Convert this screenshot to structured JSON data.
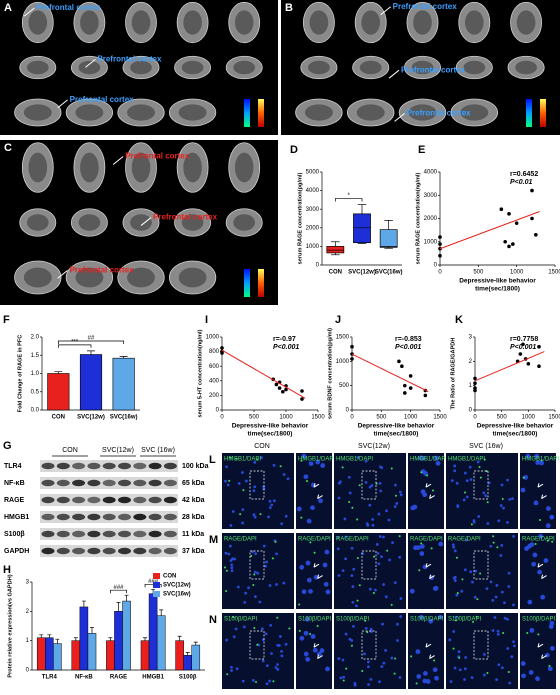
{
  "images": [
    {
      "label": "A",
      "annotations": [
        "Prefrontal cortex",
        "Prefrontal cortex",
        "Prefrontal cortex"
      ],
      "annotation_color": "#3aa0ff"
    },
    {
      "label": "B",
      "annotations": [
        "Prefrontal cortex",
        "Prefrontal cortex",
        "Prefrontal cortex"
      ],
      "annotation_color": "#3aa0ff"
    },
    {
      "label": "C",
      "annotations": [
        "Prefrontal cortex",
        "Prefrontal cortex",
        "Prefrontal cortex"
      ],
      "annotation_color": "#e8211f"
    }
  ],
  "blot": {
    "label": "G",
    "columns": [
      "CON",
      "SVC(12w)",
      "SVC (16w)"
    ],
    "rows": [
      {
        "name": "TLR4",
        "size": "100 kDa"
      },
      {
        "name": "NF-κB",
        "size": "65 kDa"
      },
      {
        "name": "RAGE",
        "size": "42 kDa"
      },
      {
        "name": "HMGB1",
        "size": "28 kDa"
      },
      {
        "name": "S100β",
        "size": "11 kDa"
      },
      {
        "name": "GAPDH",
        "size": "37 kDa"
      }
    ]
  },
  "micrographs": {
    "columns": [
      "CON",
      "SVC(12w)",
      "SVC (16w)"
    ],
    "rows": [
      {
        "label": "L",
        "stain": "HMGB1/DAPI"
      },
      {
        "label": "M",
        "stain": "RAGE/DAPI"
      },
      {
        "label": "N",
        "stain": "S100β/DAPI"
      }
    ]
  },
  "chart_data": [
    {
      "type": "box",
      "label": "D",
      "ylabel": "serum RAGE concentration(pg/ml)",
      "categories": [
        "CON",
        "SVC(12w)",
        "SVC(16w)"
      ],
      "boxes": [
        {
          "min": 550,
          "q1": 650,
          "median": 800,
          "q3": 1000,
          "max": 1250
        },
        {
          "min": 1150,
          "q1": 1200,
          "median": 2000,
          "q3": 2750,
          "max": 3250
        },
        {
          "min": 900,
          "q1": 950,
          "median": 1000,
          "q3": 1900,
          "max": 2400
        }
      ],
      "colors": [
        "#e8211f",
        "#1f2fd8",
        "#5fa8e8"
      ],
      "ylim": [
        0,
        5000
      ],
      "yticks": [
        0,
        1000,
        2000,
        3000,
        4000,
        5000
      ],
      "annotations": [
        "*"
      ]
    },
    {
      "type": "scatter",
      "label": "E",
      "ylabel": "serum RAGE concentration(ng/ml)",
      "xlabel": [
        "Depressive-like behavior",
        "time(sec/1800)"
      ],
      "x": [
        0,
        0,
        0,
        0,
        800,
        850,
        900,
        900,
        950,
        1000,
        1200,
        1200,
        1250
      ],
      "values": [
        1200,
        900,
        700,
        400,
        2400,
        1000,
        800,
        2200,
        900,
        1800,
        3200,
        2000,
        1300
      ],
      "fit_x": [
        0,
        1300
      ],
      "fit_y": [
        700,
        2300
      ],
      "xlim": [
        0,
        1500
      ],
      "xticks": [
        0,
        500,
        1000,
        1500
      ],
      "ylim": [
        0,
        4000
      ],
      "yticks": [
        0,
        1000,
        2000,
        3000,
        4000
      ],
      "stats": [
        "r=0.6452",
        "P<0.01"
      ],
      "point_color": "#000000",
      "line_color": "#e8211f"
    },
    {
      "type": "bar",
      "label": "F",
      "ylabel": "Fold Change of RAGE in PFC",
      "categories": [
        "CON",
        "SVC(12w)",
        "SVC(16w)"
      ],
      "values": [
        1.0,
        1.52,
        1.42
      ],
      "errors": [
        0.05,
        0.1,
        0.05
      ],
      "colors": [
        "#e8211f",
        "#1f2fd8",
        "#5fa8e8"
      ],
      "ylim": [
        0,
        2.0
      ],
      "yticks": [
        {
          "value": 0,
          "label": "0.0"
        },
        0.5,
        {
          "value": 1,
          "label": "1.0"
        },
        1.5,
        {
          "value": 2,
          "label": "2.0"
        }
      ],
      "annotations": [
        "***",
        "##"
      ]
    },
    {
      "type": "scatter",
      "label": "I",
      "ylabel": "serum 5-HT concentration(ng/ml)",
      "xlabel": [
        "Depressive-like behavior",
        "time(sec/1800)"
      ],
      "x": [
        0,
        0,
        0,
        800,
        850,
        900,
        900,
        950,
        1000,
        1000,
        1250,
        1250
      ],
      "values": [
        800,
        850,
        780,
        420,
        350,
        300,
        380,
        250,
        330,
        280,
        260,
        150
      ],
      "fit_x": [
        0,
        1300
      ],
      "fit_y": [
        820,
        160
      ],
      "xlim": [
        0,
        1500
      ],
      "xticks": [
        0,
        500,
        1000,
        1500
      ],
      "ylim": [
        0,
        1000
      ],
      "yticks": [
        0,
        200,
        400,
        600,
        800,
        1000
      ],
      "stats": [
        "r=-0.97",
        "P<0.001"
      ],
      "point_color": "#000000",
      "line_color": "#e8211f"
    },
    {
      "type": "scatter",
      "label": "J",
      "ylabel": "serum BDNF concentration(pg/ml)",
      "xlabel": [
        "Depressive-like behavior",
        "time(sec/1800)"
      ],
      "x": [
        0,
        0,
        0,
        800,
        850,
        900,
        900,
        1000,
        1000,
        1250,
        1250
      ],
      "values": [
        1300,
        1150,
        1050,
        1000,
        900,
        500,
        350,
        700,
        450,
        400,
        300
      ],
      "fit_x": [
        0,
        1300
      ],
      "fit_y": [
        1150,
        380
      ],
      "xlim": [
        0,
        1500
      ],
      "xticks": [
        0,
        500,
        1000,
        1500
      ],
      "ylim": [
        0,
        1500
      ],
      "yticks": [
        0,
        500,
        1000,
        1500
      ],
      "stats": [
        "r=-0.853",
        "P<0.001"
      ],
      "point_color": "#000000",
      "line_color": "#e8211f"
    },
    {
      "type": "scatter",
      "label": "K",
      "ylabel": "The Ratio of RAGE/GAPDH",
      "xlabel": [
        "Depressive-like behavior",
        "time(sec/1800)"
      ],
      "x": [
        0,
        0,
        0,
        0,
        800,
        850,
        900,
        950,
        1000,
        1200,
        1200
      ],
      "values": [
        1.1,
        0.9,
        1.3,
        0.8,
        2.0,
        2.3,
        2.7,
        2.1,
        1.9,
        2.6,
        1.8
      ],
      "fit_x": [
        0,
        1300
      ],
      "fit_y": [
        1.2,
        2.4
      ],
      "xlim": [
        0,
        1500
      ],
      "xticks": [
        0,
        500,
        1000,
        1500
      ],
      "ylim": [
        0,
        3
      ],
      "yticks": [
        0,
        1,
        2,
        3
      ],
      "stats": [
        "r=0.7758",
        "P<0.001"
      ],
      "point_color": "#000000",
      "line_color": "#e8211f"
    },
    {
      "type": "grouped_bar",
      "label": "H",
      "ylabel": "Protein relative expression(vs GAPDH)",
      "categories": [
        "TLR4",
        "NF-κB",
        "RAGE",
        "HMGB1",
        "S100β"
      ],
      "series": [
        {
          "name": "CON",
          "color": "#e8211f",
          "values": [
            1.1,
            1.0,
            1.0,
            1.0,
            1.0
          ],
          "errors": [
            0.1,
            0.1,
            0.1,
            0.1,
            0.15
          ]
        },
        {
          "name": "SVC(12w)",
          "color": "#1f2fd8",
          "values": [
            1.1,
            2.15,
            2.0,
            2.6,
            0.5
          ],
          "errors": [
            0.1,
            0.2,
            0.3,
            0.15,
            0.1
          ]
        },
        {
          "name": "SVC(16w)",
          "color": "#5fa8e8",
          "values": [
            0.9,
            1.25,
            2.35,
            1.85,
            0.85
          ],
          "errors": [
            0.15,
            0.2,
            0.2,
            0.2,
            0.1
          ]
        }
      ],
      "ylim": [
        0,
        3
      ],
      "yticks": [
        0,
        1,
        2,
        3
      ],
      "annotations": [
        "###",
        "###"
      ],
      "legend": "upper right"
    }
  ]
}
